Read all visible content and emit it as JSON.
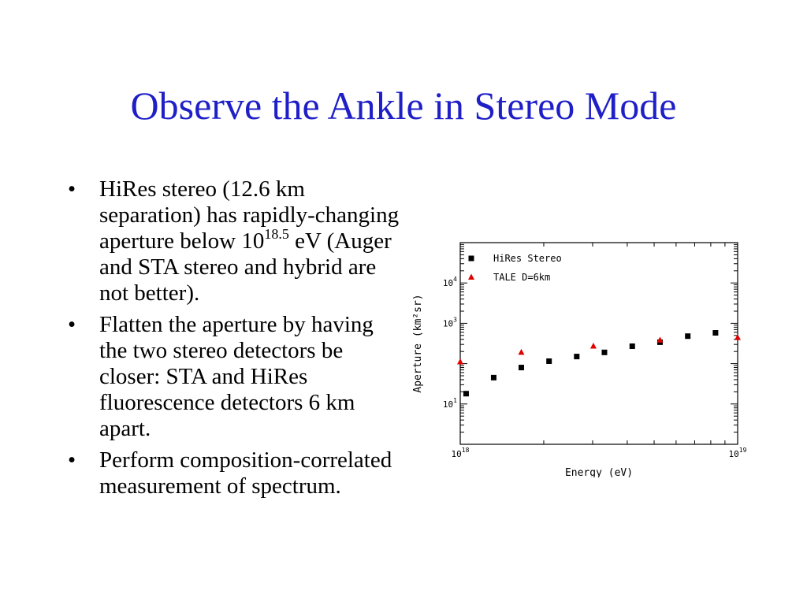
{
  "slide": {
    "title": "Observe the Ankle in Stereo Mode",
    "bullets": [
      {
        "symbol": "•",
        "parts": [
          "HiRes stereo (12.6 km separation) has rapidly-changing aperture below 10",
          "18.5",
          " eV (Auger and STA stereo and hybrid are not better)."
        ]
      },
      {
        "symbol": "•",
        "parts": [
          "Flatten the aperture by having the two stereo detectors be closer:  STA and HiRes fluorescence detectors 6 km apart."
        ]
      },
      {
        "symbol": "•",
        "parts": [
          "Perform composition-correlated measurement of spectrum."
        ]
      }
    ]
  },
  "chart_data": {
    "type": "scatter",
    "xlabel": "Energy (eV)",
    "ylabel": "Aperture (km²sr)",
    "xscale": "log",
    "yscale": "log",
    "xlim": [
      1e+18,
      1e+19
    ],
    "ylim": [
      1,
      100000
    ],
    "x_tick_labels": [
      {
        "base": "10",
        "exp": "18"
      },
      {
        "base": "10",
        "exp": "19"
      }
    ],
    "y_tick_labels": [
      {
        "base": "10",
        "exp": "1"
      },
      {
        "base": "10",
        "exp": "3"
      },
      {
        "base": "10",
        "exp": "4"
      }
    ],
    "legend_position": "top-left",
    "series": [
      {
        "name": "HiRes Stereo",
        "marker": "square",
        "color": "#000000",
        "points": [
          [
            1.05e+18,
            18
          ],
          [
            1.32e+18,
            45
          ],
          [
            1.66e+18,
            80
          ],
          [
            2.09e+18,
            115
          ],
          [
            2.63e+18,
            150
          ],
          [
            3.31e+18,
            190
          ],
          [
            4.17e+18,
            270
          ],
          [
            5.25e+18,
            340
          ],
          [
            6.61e+18,
            480
          ],
          [
            8.32e+18,
            580
          ]
        ]
      },
      {
        "name": "TALE D=6km",
        "marker": "triangle",
        "color": "#e00000",
        "points": [
          [
            1e+18,
            110
          ],
          [
            1.66e+18,
            190
          ],
          [
            3.02e+18,
            270
          ],
          [
            5.25e+18,
            380
          ],
          [
            1e+19,
            440
          ]
        ]
      }
    ]
  }
}
